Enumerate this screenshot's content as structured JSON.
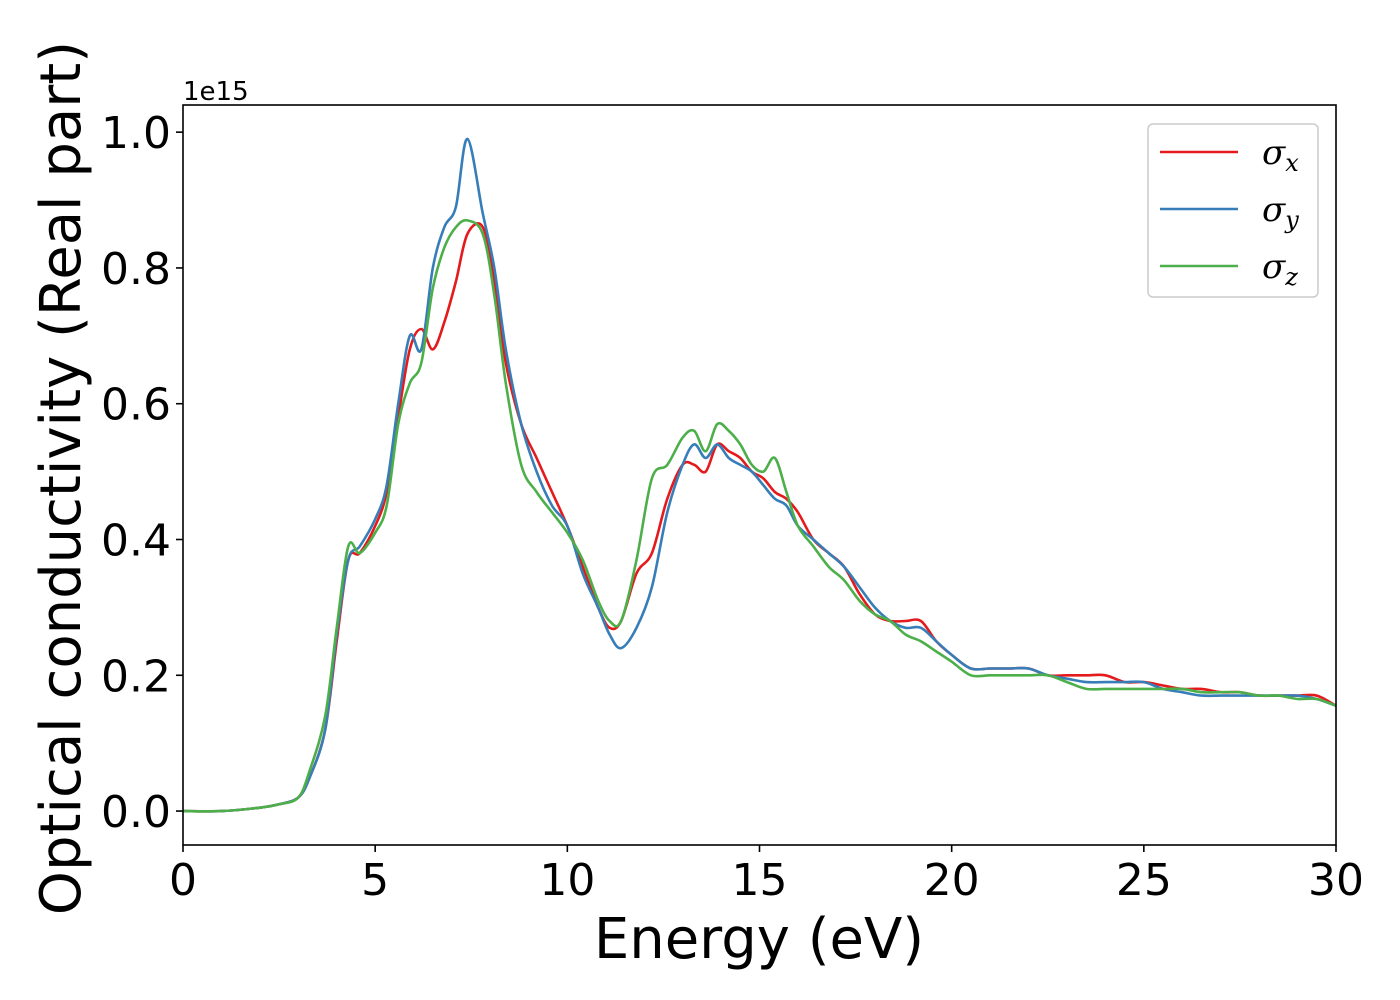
{
  "chart_data": {
    "type": "line",
    "xlabel": "Energy (eV)",
    "ylabel": "Optical conductivity (Real part)",
    "y_offset_label": "1e15",
    "xlim": [
      0,
      30
    ],
    "ylim": [
      -0.05,
      1.04
    ],
    "x_ticks": [
      0,
      5,
      10,
      15,
      20,
      25,
      30
    ],
    "x_tick_labels": [
      "0",
      "5",
      "10",
      "15",
      "20",
      "25",
      "30"
    ],
    "y_ticks": [
      0.0,
      0.2,
      0.4,
      0.6,
      0.8,
      1.0
    ],
    "y_tick_labels": [
      "0.0",
      "0.2",
      "0.4",
      "0.6",
      "0.8",
      "1.0"
    ],
    "grid": false,
    "legend_position": "top-right",
    "series": [
      {
        "name": "σ_x",
        "legend_base": "σ",
        "legend_sub": "x",
        "color": "#e41a1c",
        "x": [
          0,
          1,
          2,
          2.5,
          3,
          3.3,
          3.7,
          4.0,
          4.3,
          4.6,
          5.0,
          5.3,
          5.6,
          5.9,
          6.2,
          6.5,
          6.8,
          7.1,
          7.4,
          7.8,
          8.1,
          8.4,
          8.8,
          9.2,
          9.6,
          10.0,
          10.4,
          10.8,
          11.1,
          11.4,
          11.8,
          12.2,
          12.6,
          13.0,
          13.3,
          13.6,
          13.9,
          14.2,
          14.5,
          14.8,
          15.1,
          15.4,
          15.7,
          16.0,
          16.4,
          16.8,
          17.2,
          17.6,
          18.0,
          18.4,
          18.8,
          19.2,
          19.6,
          20.0,
          20.5,
          21,
          21.5,
          22,
          22.5,
          23,
          23.5,
          24,
          24.5,
          25,
          25.5,
          26,
          26.5,
          27,
          27.5,
          28,
          28.5,
          29,
          29.5,
          30
        ],
        "y": [
          0.0,
          0.0,
          0.005,
          0.01,
          0.02,
          0.05,
          0.12,
          0.25,
          0.37,
          0.38,
          0.42,
          0.47,
          0.58,
          0.68,
          0.71,
          0.68,
          0.72,
          0.78,
          0.85,
          0.86,
          0.78,
          0.66,
          0.57,
          0.52,
          0.47,
          0.42,
          0.36,
          0.3,
          0.27,
          0.28,
          0.35,
          0.38,
          0.46,
          0.51,
          0.51,
          0.5,
          0.54,
          0.53,
          0.52,
          0.5,
          0.49,
          0.47,
          0.46,
          0.44,
          0.4,
          0.38,
          0.36,
          0.32,
          0.29,
          0.28,
          0.28,
          0.28,
          0.25,
          0.23,
          0.21,
          0.21,
          0.21,
          0.21,
          0.2,
          0.2,
          0.2,
          0.2,
          0.19,
          0.19,
          0.185,
          0.18,
          0.18,
          0.175,
          0.175,
          0.17,
          0.17,
          0.17,
          0.17,
          0.155
        ]
      },
      {
        "name": "σ_y",
        "legend_base": "σ",
        "legend_sub": "y",
        "color": "#377eb8",
        "x": [
          0,
          1,
          2,
          2.5,
          3,
          3.3,
          3.7,
          4.0,
          4.3,
          4.6,
          5.0,
          5.3,
          5.6,
          5.9,
          6.2,
          6.5,
          6.8,
          7.1,
          7.4,
          7.8,
          8.1,
          8.4,
          8.8,
          9.2,
          9.6,
          10.0,
          10.4,
          10.8,
          11.1,
          11.4,
          11.8,
          12.2,
          12.6,
          13.0,
          13.3,
          13.6,
          13.9,
          14.2,
          14.5,
          14.8,
          15.1,
          15.4,
          15.7,
          16.0,
          16.4,
          16.8,
          17.2,
          17.6,
          18.0,
          18.4,
          18.8,
          19.2,
          19.6,
          20.0,
          20.5,
          21,
          21.5,
          22,
          22.5,
          23,
          23.5,
          24,
          24.5,
          25,
          25.5,
          26,
          26.5,
          27,
          27.5,
          28,
          28.5,
          29,
          29.5,
          30
        ],
        "y": [
          0.0,
          0.0,
          0.005,
          0.01,
          0.02,
          0.05,
          0.12,
          0.26,
          0.37,
          0.39,
          0.43,
          0.48,
          0.6,
          0.7,
          0.68,
          0.8,
          0.86,
          0.89,
          0.99,
          0.88,
          0.8,
          0.68,
          0.57,
          0.5,
          0.45,
          0.42,
          0.35,
          0.3,
          0.26,
          0.24,
          0.27,
          0.33,
          0.44,
          0.51,
          0.54,
          0.52,
          0.54,
          0.52,
          0.51,
          0.5,
          0.48,
          0.46,
          0.45,
          0.42,
          0.4,
          0.38,
          0.36,
          0.33,
          0.3,
          0.28,
          0.27,
          0.27,
          0.25,
          0.23,
          0.21,
          0.21,
          0.21,
          0.21,
          0.2,
          0.195,
          0.19,
          0.19,
          0.19,
          0.19,
          0.18,
          0.175,
          0.17,
          0.17,
          0.17,
          0.17,
          0.17,
          0.17,
          0.165,
          0.155
        ]
      },
      {
        "name": "σ_z",
        "legend_base": "σ",
        "legend_sub": "z",
        "color": "#4daf4a",
        "x": [
          0,
          1,
          2,
          2.5,
          3,
          3.3,
          3.7,
          4.0,
          4.3,
          4.6,
          5.0,
          5.3,
          5.6,
          5.9,
          6.2,
          6.5,
          6.8,
          7.1,
          7.4,
          7.8,
          8.1,
          8.4,
          8.8,
          9.2,
          9.6,
          10.0,
          10.4,
          10.8,
          11.1,
          11.4,
          11.8,
          12.2,
          12.6,
          13.0,
          13.3,
          13.6,
          13.9,
          14.2,
          14.5,
          14.8,
          15.1,
          15.4,
          15.7,
          16.0,
          16.4,
          16.8,
          17.2,
          17.6,
          18.0,
          18.4,
          18.8,
          19.2,
          19.6,
          20.0,
          20.5,
          21,
          21.5,
          22,
          22.5,
          23,
          23.5,
          24,
          24.5,
          25,
          25.5,
          26,
          26.5,
          27,
          27.5,
          28,
          28.5,
          29,
          29.5,
          30
        ],
        "y": [
          0.0,
          0.0,
          0.005,
          0.01,
          0.02,
          0.06,
          0.14,
          0.27,
          0.39,
          0.38,
          0.41,
          0.45,
          0.57,
          0.63,
          0.66,
          0.77,
          0.83,
          0.86,
          0.87,
          0.85,
          0.76,
          0.63,
          0.51,
          0.47,
          0.44,
          0.41,
          0.37,
          0.31,
          0.28,
          0.28,
          0.37,
          0.49,
          0.51,
          0.55,
          0.56,
          0.53,
          0.57,
          0.56,
          0.54,
          0.51,
          0.5,
          0.52,
          0.47,
          0.42,
          0.39,
          0.36,
          0.34,
          0.31,
          0.29,
          0.28,
          0.26,
          0.25,
          0.235,
          0.22,
          0.2,
          0.2,
          0.2,
          0.2,
          0.2,
          0.19,
          0.18,
          0.18,
          0.18,
          0.18,
          0.18,
          0.18,
          0.175,
          0.175,
          0.175,
          0.17,
          0.17,
          0.165,
          0.165,
          0.155
        ]
      }
    ]
  }
}
